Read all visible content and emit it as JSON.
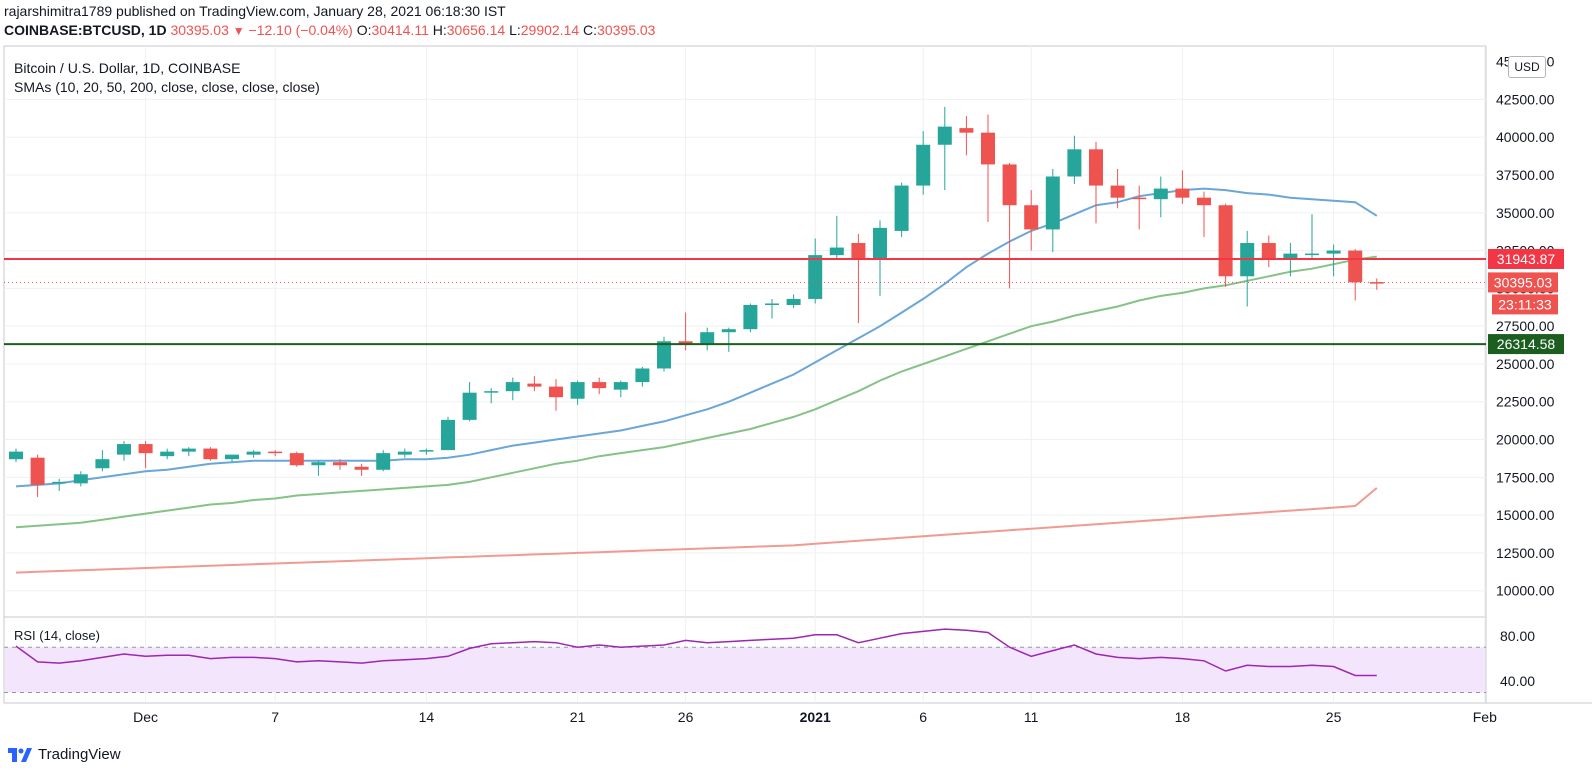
{
  "header": {
    "publisher_line": "rajarshimitra1789 published on TradingView.com, January 28, 2021 06:18:30 IST",
    "symbol": "COINBASE:BTCUSD, 1D",
    "last": "30395.03",
    "change": "−12.10 (−0.04%)",
    "o_label": "O:",
    "o_value": "30414.11",
    "h_label": "H:",
    "h_value": "30656.14",
    "l_label": "L:",
    "l_value": "29902.14",
    "c_label": "C:",
    "c_value": "30395.03"
  },
  "legend": {
    "title": "Bitcoin / U.S. Dollar, 1D, COINBASE",
    "smas": "SMAs (10, 20, 50, 200, close, close, close, close)",
    "rsi": "RSI (14, close)"
  },
  "currency_badge": "USD",
  "footer": {
    "brand": "TradingView"
  },
  "colors": {
    "up": "#26a69a",
    "down": "#ef5350",
    "sma_blue": "#6aa6d8",
    "sma_green": "#86c287",
    "sma_red": "#f19a92",
    "rsi_line": "#9c27b0",
    "rsi_band": "#f3e5fc",
    "resistance": "#f23645",
    "support": "#1b5e20"
  },
  "chart_data": [
    {
      "type": "candlestick",
      "title": "Bitcoin / U.S. Dollar, 1D, COINBASE",
      "ylim": [
        9000,
        45000
      ],
      "y_ticks": [
        10000,
        12500,
        15000,
        17500,
        20000,
        22500,
        25000,
        27500,
        30000,
        32500,
        35000,
        37500,
        40000,
        42500
      ],
      "y_tick_labels": [
        "10000.00",
        "12500.00",
        "15000.00",
        "17500.00",
        "20000.00",
        "22500.00",
        "25000.00",
        "27500.00",
        "30000.00",
        "32500.00",
        "35000.00",
        "37500.00",
        "40000.00",
        "42500.00"
      ],
      "y_top_label": "45000.00",
      "x_ticks": [
        {
          "label": "Dec",
          "index": 6
        },
        {
          "label": "7",
          "index": 12
        },
        {
          "label": "14",
          "index": 19
        },
        {
          "label": "21",
          "index": 26
        },
        {
          "label": "26",
          "index": 31
        },
        {
          "label": "2021",
          "index": 37
        },
        {
          "label": "6",
          "index": 42
        },
        {
          "label": "11",
          "index": 47
        },
        {
          "label": "18",
          "index": 54
        },
        {
          "label": "25",
          "index": 61
        },
        {
          "label": "Feb",
          "index": 68
        }
      ],
      "candles": [
        {
          "o": 18700,
          "h": 19400,
          "l": 18500,
          "c": 19200
        },
        {
          "o": 18800,
          "h": 19000,
          "l": 16200,
          "c": 17000
        },
        {
          "o": 17100,
          "h": 17400,
          "l": 16600,
          "c": 17200
        },
        {
          "o": 17100,
          "h": 17900,
          "l": 16900,
          "c": 17700
        },
        {
          "o": 18100,
          "h": 19300,
          "l": 17900,
          "c": 18700
        },
        {
          "o": 19000,
          "h": 19900,
          "l": 18600,
          "c": 19700
        },
        {
          "o": 19700,
          "h": 19900,
          "l": 18100,
          "c": 19100
        },
        {
          "o": 18900,
          "h": 19400,
          "l": 18700,
          "c": 19200
        },
        {
          "o": 19200,
          "h": 19500,
          "l": 18900,
          "c": 19400
        },
        {
          "o": 19400,
          "h": 19500,
          "l": 18600,
          "c": 18700
        },
        {
          "o": 18700,
          "h": 19000,
          "l": 18500,
          "c": 19000
        },
        {
          "o": 19000,
          "h": 19300,
          "l": 18800,
          "c": 19200
        },
        {
          "o": 19200,
          "h": 19300,
          "l": 18900,
          "c": 19100
        },
        {
          "o": 19100,
          "h": 19200,
          "l": 18200,
          "c": 18300
        },
        {
          "o": 18300,
          "h": 18600,
          "l": 17600,
          "c": 18500
        },
        {
          "o": 18500,
          "h": 18700,
          "l": 18000,
          "c": 18300
        },
        {
          "o": 18200,
          "h": 18400,
          "l": 17600,
          "c": 18000
        },
        {
          "o": 18000,
          "h": 19300,
          "l": 17900,
          "c": 19100
        },
        {
          "o": 19000,
          "h": 19400,
          "l": 18800,
          "c": 19200
        },
        {
          "o": 19200,
          "h": 19400,
          "l": 19000,
          "c": 19300
        },
        {
          "o": 19300,
          "h": 21500,
          "l": 19300,
          "c": 21300
        },
        {
          "o": 21300,
          "h": 23800,
          "l": 21200,
          "c": 23100
        },
        {
          "o": 23100,
          "h": 23400,
          "l": 22400,
          "c": 23200
        },
        {
          "o": 23200,
          "h": 24100,
          "l": 22600,
          "c": 23800
        },
        {
          "o": 23700,
          "h": 24200,
          "l": 23200,
          "c": 23500
        },
        {
          "o": 23500,
          "h": 24000,
          "l": 21900,
          "c": 22800
        },
        {
          "o": 22700,
          "h": 23900,
          "l": 22300,
          "c": 23800
        },
        {
          "o": 23800,
          "h": 24100,
          "l": 23000,
          "c": 23400
        },
        {
          "o": 23300,
          "h": 23900,
          "l": 22800,
          "c": 23800
        },
        {
          "o": 23800,
          "h": 24800,
          "l": 23500,
          "c": 24700
        },
        {
          "o": 24700,
          "h": 26800,
          "l": 24500,
          "c": 26500
        },
        {
          "o": 26500,
          "h": 28400,
          "l": 25900,
          "c": 26300
        },
        {
          "o": 26300,
          "h": 27400,
          "l": 25900,
          "c": 27100
        },
        {
          "o": 27100,
          "h": 27400,
          "l": 25800,
          "c": 27300
        },
        {
          "o": 27300,
          "h": 29000,
          "l": 27100,
          "c": 28900
        },
        {
          "o": 28900,
          "h": 29300,
          "l": 28000,
          "c": 29000
        },
        {
          "o": 28900,
          "h": 29600,
          "l": 28700,
          "c": 29300
        },
        {
          "o": 29300,
          "h": 33300,
          "l": 29000,
          "c": 32200
        },
        {
          "o": 32200,
          "h": 34800,
          "l": 32000,
          "c": 32700
        },
        {
          "o": 33000,
          "h": 33600,
          "l": 27700,
          "c": 32000
        },
        {
          "o": 32000,
          "h": 34500,
          "l": 29500,
          "c": 34000
        },
        {
          "o": 33800,
          "h": 37000,
          "l": 33400,
          "c": 36800
        },
        {
          "o": 36800,
          "h": 40400,
          "l": 36200,
          "c": 39500
        },
        {
          "o": 39500,
          "h": 42000,
          "l": 36500,
          "c": 40700
        },
        {
          "o": 40600,
          "h": 41400,
          "l": 38800,
          "c": 40300
        },
        {
          "o": 40300,
          "h": 41500,
          "l": 34400,
          "c": 38200
        },
        {
          "o": 38200,
          "h": 38300,
          "l": 30000,
          "c": 35500
        },
        {
          "o": 35500,
          "h": 36500,
          "l": 32500,
          "c": 33900
        },
        {
          "o": 33900,
          "h": 37900,
          "l": 32400,
          "c": 37400
        },
        {
          "o": 37400,
          "h": 40100,
          "l": 36900,
          "c": 39200
        },
        {
          "o": 39200,
          "h": 39700,
          "l": 34300,
          "c": 36800
        },
        {
          "o": 36800,
          "h": 37900,
          "l": 35300,
          "c": 36000
        },
        {
          "o": 36000,
          "h": 36800,
          "l": 33900,
          "c": 35900
        },
        {
          "o": 35900,
          "h": 37400,
          "l": 34700,
          "c": 36600
        },
        {
          "o": 36600,
          "h": 37800,
          "l": 35600,
          "c": 36000
        },
        {
          "o": 36000,
          "h": 36400,
          "l": 33400,
          "c": 35500
        },
        {
          "o": 35500,
          "h": 35600,
          "l": 30100,
          "c": 30800
        },
        {
          "o": 30800,
          "h": 33800,
          "l": 28800,
          "c": 33000
        },
        {
          "o": 33000,
          "h": 33500,
          "l": 31400,
          "c": 32000
        },
        {
          "o": 32000,
          "h": 33000,
          "l": 30800,
          "c": 32300
        },
        {
          "o": 32300,
          "h": 34900,
          "l": 31900,
          "c": 32300
        },
        {
          "o": 32300,
          "h": 32900,
          "l": 30800,
          "c": 32500
        },
        {
          "o": 32500,
          "h": 32600,
          "l": 29200,
          "c": 30400
        },
        {
          "o": 30414.11,
          "h": 30656.14,
          "l": 29902.14,
          "c": 30395.03
        }
      ],
      "series": [
        {
          "name": "SMA 20",
          "color": "#6aa6d8",
          "start_index": 0,
          "values": [
            16900,
            17000,
            17100,
            17300,
            17500,
            17700,
            17900,
            18000,
            18200,
            18400,
            18500,
            18600,
            18600,
            18600,
            18600,
            18600,
            18600,
            18600,
            18700,
            18700,
            18800,
            19000,
            19300,
            19600,
            19800,
            20000,
            20200,
            20400,
            20600,
            20900,
            21200,
            21600,
            22000,
            22500,
            23100,
            23700,
            24300,
            25100,
            25900,
            26700,
            27500,
            28400,
            29300,
            30300,
            31400,
            32300,
            33100,
            33800,
            34300,
            34900,
            35500,
            35700,
            36100,
            36300,
            36500,
            36600,
            36500,
            36300,
            36200,
            36000,
            35900,
            35800,
            35700,
            34800
          ]
        },
        {
          "name": "SMA 50",
          "color": "#86c287",
          "start_index": 0,
          "values": [
            14200,
            14300,
            14400,
            14500,
            14700,
            14900,
            15100,
            15300,
            15500,
            15700,
            15800,
            16000,
            16100,
            16300,
            16400,
            16500,
            16600,
            16700,
            16800,
            16900,
            17000,
            17200,
            17500,
            17800,
            18100,
            18400,
            18600,
            18900,
            19100,
            19300,
            19500,
            19800,
            20100,
            20400,
            20700,
            21100,
            21500,
            22000,
            22600,
            23200,
            23900,
            24500,
            25000,
            25500,
            26000,
            26500,
            27000,
            27500,
            27800,
            28200,
            28500,
            28800,
            29200,
            29500,
            29700,
            30000,
            30200,
            30500,
            30800,
            31100,
            31300,
            31600,
            31900,
            32100
          ]
        },
        {
          "name": "SMA 200",
          "color": "#f19a92",
          "start_index": 0,
          "values": [
            11200,
            11250,
            11300,
            11350,
            11400,
            11450,
            11500,
            11550,
            11600,
            11650,
            11700,
            11750,
            11800,
            11850,
            11900,
            11950,
            12000,
            12050,
            12100,
            12150,
            12200,
            12250,
            12300,
            12350,
            12400,
            12450,
            12500,
            12550,
            12600,
            12650,
            12700,
            12750,
            12800,
            12850,
            12900,
            12950,
            13000,
            13100,
            13200,
            13300,
            13400,
            13500,
            13600,
            13700,
            13800,
            13900,
            14000,
            14100,
            14200,
            14300,
            14400,
            14500,
            14600,
            14700,
            14800,
            14900,
            15000,
            15100,
            15200,
            15300,
            15400,
            15500,
            15600,
            16800
          ]
        }
      ],
      "horizontal_lines": [
        {
          "value": 31943.87,
          "label": "31943.87",
          "color": "#f23645"
        },
        {
          "value": 26314.58,
          "label": "26314.58",
          "color": "#1b5e20"
        }
      ],
      "price_tags": [
        {
          "value": 30395.03,
          "label": "30395.03"
        },
        {
          "label": "23:11:33"
        }
      ]
    },
    {
      "type": "line",
      "title": "RSI (14, close)",
      "ylim": [
        30,
        90
      ],
      "y_ticks": [
        40,
        80
      ],
      "y_tick_labels": [
        "40.00",
        "80.00"
      ],
      "bands": [
        30,
        70
      ],
      "series": [
        {
          "name": "RSI",
          "color": "#9c27b0",
          "values": [
            71,
            57,
            56,
            58,
            61,
            64,
            62,
            63,
            63,
            60,
            61,
            61,
            60,
            57,
            58,
            57,
            56,
            58,
            59,
            60,
            62,
            69,
            73,
            74,
            75,
            74,
            70,
            72,
            70,
            71,
            72,
            76,
            74,
            75,
            76,
            77,
            78,
            81,
            81,
            74,
            78,
            82,
            84,
            86,
            85,
            83,
            70,
            62,
            67,
            72,
            64,
            61,
            60,
            61,
            60,
            58,
            49,
            54,
            53,
            53,
            54,
            53,
            45,
            45
          ]
        }
      ]
    }
  ]
}
